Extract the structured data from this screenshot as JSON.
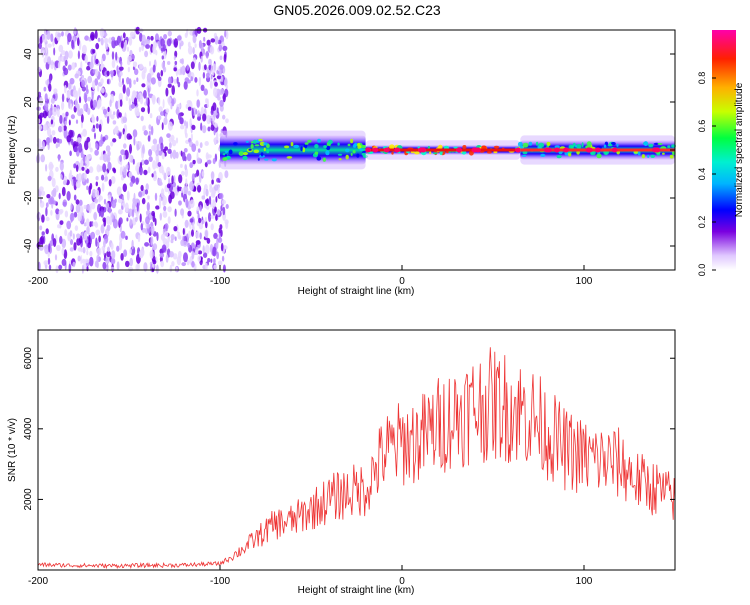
{
  "title": "GN05.2026.009.02.52.C23",
  "chart_data": [
    {
      "type": "heatmap",
      "title": "",
      "xlabel": "Height of straight line (km)",
      "ylabel": "Frequency (Hz)",
      "xlim": [
        -200,
        150
      ],
      "ylim": [
        -50,
        50
      ],
      "x_ticks": [
        "-200",
        "-100",
        "0",
        "100"
      ],
      "y_ticks": [
        "-40",
        "-20",
        "0",
        "20",
        "40"
      ],
      "colorbar": {
        "label": "Normalized spectral amplitude",
        "range": [
          0.0,
          1.0
        ],
        "ticks": [
          "0.0",
          "0.2",
          "0.4",
          "0.6",
          "0.8"
        ],
        "colors": [
          "#ffffff",
          "#cc99ff",
          "#6600dd",
          "#0000ff",
          "#00ccff",
          "#00ff66",
          "#ccff00",
          "#ff9900",
          "#ff0000",
          "#ff00aa"
        ]
      },
      "regions": [
        {
          "x_range": [
            -200,
            -100
          ],
          "freq_range": [
            -50,
            50
          ],
          "amplitude": 0.15
        },
        {
          "x_range": [
            -100,
            -20
          ],
          "freq_range": [
            -6,
            6
          ],
          "amplitude": 0.45
        },
        {
          "x_range": [
            -20,
            65
          ],
          "freq_range": [
            -2,
            2
          ],
          "amplitude": 0.95
        },
        {
          "x_range": [
            65,
            150
          ],
          "freq_range": [
            -4,
            4
          ],
          "amplitude": 0.6
        }
      ]
    },
    {
      "type": "line",
      "title": "",
      "xlabel": "Height of straight line (km)",
      "ylabel": "SNR (10 * v/v)",
      "xlim": [
        -200,
        150
      ],
      "ylim": [
        0,
        6800
      ],
      "x_ticks": [
        "-200",
        "-100",
        "0",
        "100"
      ],
      "y_ticks": [
        "2000",
        "4000",
        "6000"
      ],
      "line_color": "#ee3333",
      "series": [
        {
          "x": [
            -200,
            -180,
            -160,
            -140,
            -120,
            -100,
            -90,
            -80,
            -70,
            -60,
            -50,
            -40,
            -30,
            -20,
            -10,
            0,
            10,
            20,
            30,
            40,
            50,
            60,
            70,
            80,
            90,
            100,
            110,
            120,
            130,
            140,
            150
          ],
          "y": [
            150,
            130,
            120,
            130,
            140,
            180,
            500,
            900,
            1300,
            1400,
            1700,
            2000,
            2200,
            2300,
            3300,
            3600,
            3700,
            4100,
            4400,
            4600,
            4700,
            4600,
            4400,
            3900,
            3400,
            3200,
            3100,
            3000,
            2500,
            2300,
            2000
          ]
        }
      ]
    }
  ]
}
